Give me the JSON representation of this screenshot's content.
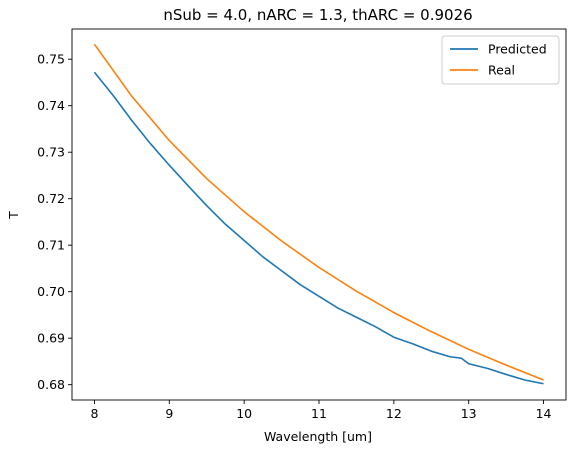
{
  "chart_data": {
    "type": "line",
    "title": "nSub = 4.0, nARC = 1.3, thARC = 0.9026",
    "xlabel": "Wavelength [um]",
    "ylabel": "T",
    "xlim": [
      7.7,
      14.3
    ],
    "ylim": [
      0.6767,
      0.7565
    ],
    "xticks": [
      8,
      9,
      10,
      11,
      12,
      13,
      14
    ],
    "yticks": [
      0.68,
      0.69,
      0.7,
      0.71,
      0.72,
      0.73,
      0.74,
      0.75
    ],
    "xtick_labels": [
      "8",
      "9",
      "10",
      "11",
      "12",
      "13",
      "14"
    ],
    "ytick_labels": [
      "0.68",
      "0.69",
      "0.70",
      "0.71",
      "0.72",
      "0.73",
      "0.74",
      "0.75"
    ],
    "grid": false,
    "legend_position": "top-right",
    "series": [
      {
        "name": "Predicted",
        "color": "#1f77b4",
        "x": [
          8.0,
          8.25,
          8.5,
          8.75,
          9.0,
          9.25,
          9.5,
          9.75,
          10.0,
          10.25,
          10.5,
          10.75,
          11.0,
          11.25,
          11.5,
          11.75,
          12.0,
          12.25,
          12.5,
          12.75,
          12.9,
          13.0,
          13.25,
          13.5,
          13.75,
          14.0
        ],
        "y": [
          0.7472,
          0.7422,
          0.7368,
          0.7318,
          0.7272,
          0.7228,
          0.7185,
          0.7145,
          0.711,
          0.7075,
          0.7045,
          0.7015,
          0.699,
          0.6965,
          0.6945,
          0.6925,
          0.6902,
          0.6888,
          0.6872,
          0.686,
          0.6857,
          0.6845,
          0.6835,
          0.6822,
          0.681,
          0.6802
        ]
      },
      {
        "name": "Real",
        "color": "#ff7f0e",
        "x": [
          8.0,
          8.5,
          9.0,
          9.5,
          10.0,
          10.5,
          11.0,
          11.5,
          12.0,
          12.5,
          13.0,
          13.5,
          14.0
        ],
        "y": [
          0.7532,
          0.742,
          0.7325,
          0.7243,
          0.7172,
          0.7109,
          0.7052,
          0.7001,
          0.6955,
          0.6914,
          0.6876,
          0.6842,
          0.681
        ]
      }
    ]
  }
}
